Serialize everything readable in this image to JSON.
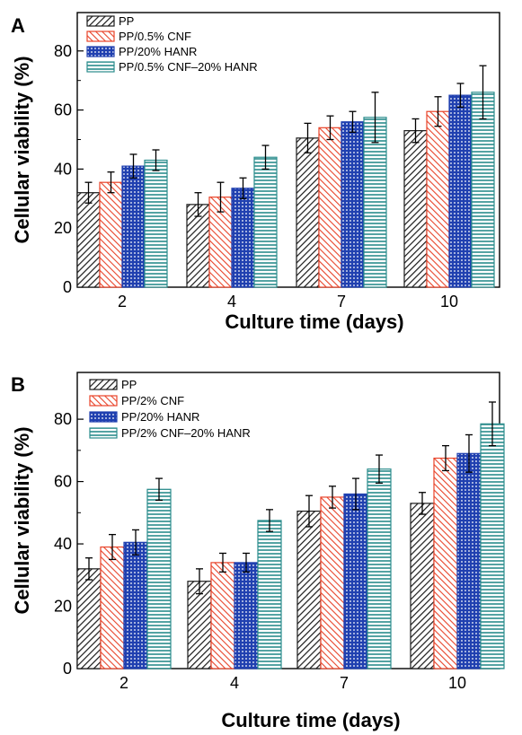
{
  "chart_data": [
    {
      "panel": "A",
      "type": "bar",
      "xlabel": "Culture time (days)",
      "ylabel": "Cellular viability (%)",
      "categories": [
        "2",
        "4",
        "7",
        "10"
      ],
      "ylim": [
        0,
        93
      ],
      "yticks": [
        0,
        20,
        40,
        60,
        80
      ],
      "legend_position": "top-left",
      "series": [
        {
          "name": "PP",
          "color": "#1a1a1a",
          "pattern": "diagonal-up",
          "values": [
            32,
            28,
            50.5,
            53
          ],
          "errors": [
            3.5,
            4,
            5,
            4
          ]
        },
        {
          "name": "PP/0.5% CNF",
          "color": "#e8442a",
          "pattern": "diagonal-down",
          "values": [
            35.5,
            30.5,
            54,
            59.5
          ],
          "errors": [
            3.5,
            5,
            4,
            5
          ]
        },
        {
          "name": "PP/20% HANR",
          "color": "#2040b0",
          "pattern": "dots",
          "values": [
            41,
            33.5,
            56,
            65
          ],
          "errors": [
            4,
            3.5,
            3.5,
            4
          ]
        },
        {
          "name": "PP/0.5% CNF–20% HANR",
          "color": "#2a8c8c",
          "pattern": "horizontal",
          "values": [
            43,
            44,
            57.5,
            66
          ],
          "errors": [
            3.5,
            4,
            8.5,
            9
          ]
        }
      ]
    },
    {
      "panel": "B",
      "type": "bar",
      "xlabel": "Culture time (days)",
      "ylabel": "Cellular viability (%)",
      "categories": [
        "2",
        "4",
        "7",
        "10"
      ],
      "ylim": [
        0,
        95
      ],
      "yticks": [
        0,
        20,
        40,
        60,
        80
      ],
      "legend_position": "top-left",
      "series": [
        {
          "name": "PP",
          "color": "#1a1a1a",
          "pattern": "diagonal-up",
          "values": [
            32,
            28,
            50.5,
            53
          ],
          "errors": [
            3.5,
            4,
            5,
            3.5
          ]
        },
        {
          "name": "PP/2% CNF",
          "color": "#e8442a",
          "pattern": "diagonal-down",
          "values": [
            39,
            34,
            55,
            67.5
          ],
          "errors": [
            4,
            3,
            3.5,
            4
          ]
        },
        {
          "name": "PP/20% HANR",
          "color": "#2040b0",
          "pattern": "dots",
          "values": [
            40.5,
            34,
            56,
            69
          ],
          "errors": [
            4,
            3,
            5,
            6
          ]
        },
        {
          "name": "PP/2% CNF–20% HANR",
          "color": "#2a8c8c",
          "pattern": "horizontal",
          "values": [
            57.5,
            47.5,
            64,
            78.5
          ],
          "errors": [
            3.5,
            3.5,
            4.5,
            7
          ]
        }
      ]
    }
  ]
}
